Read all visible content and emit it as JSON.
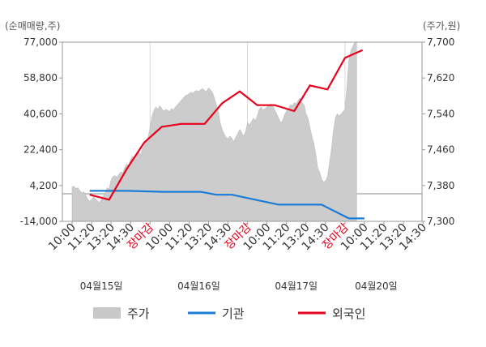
{
  "chart_data": {
    "type": "line",
    "left_axis_unit": "(순매매량,주)",
    "right_axis_unit": "(주가,원)",
    "left_ticks": [
      "77,000",
      "58,800",
      "40,600",
      "22,400",
      "4,200",
      "-14,000"
    ],
    "left_ylim": [
      -14000,
      77000
    ],
    "right_ticks": [
      "7,700",
      "7,620",
      "7,540",
      "7,460",
      "7,380",
      "7,300"
    ],
    "right_ylim": [
      7300,
      7700
    ],
    "x_ticks": [
      {
        "label": "10:00",
        "red": false
      },
      {
        "label": "11:20",
        "red": false
      },
      {
        "label": "13:20",
        "red": false
      },
      {
        "label": "14:30",
        "red": false
      },
      {
        "label": "장마감",
        "red": true
      },
      {
        "label": "10:00",
        "red": false
      },
      {
        "label": "11:20",
        "red": false
      },
      {
        "label": "13:20",
        "red": false
      },
      {
        "label": "14:30",
        "red": false
      },
      {
        "label": "장마감",
        "red": true
      },
      {
        "label": "10:00",
        "red": false
      },
      {
        "label": "11:20",
        "red": false
      },
      {
        "label": "13:20",
        "red": false
      },
      {
        "label": "14:30",
        "red": false
      },
      {
        "label": "장마감",
        "red": true
      },
      {
        "label": "10:00",
        "red": false
      },
      {
        "label": "11:20",
        "red": false
      },
      {
        "label": "13:20",
        "red": false
      },
      {
        "label": "14:30",
        "red": false
      }
    ],
    "dates": [
      "04월15일",
      "04월16일",
      "04월17일",
      "04월20일"
    ],
    "legend": [
      {
        "name": "주가",
        "color": "#c8c8c8",
        "kind": "area"
      },
      {
        "name": "기관",
        "color": "#1a7cd6",
        "kind": "line"
      },
      {
        "name": "외국인",
        "color": "#e8001c",
        "kind": "line"
      }
    ],
    "price_series": [
      [
        0,
        7377
      ],
      [
        0.1,
        7378
      ],
      [
        0.2,
        7373
      ],
      [
        0.3,
        7375
      ],
      [
        0.4,
        7368
      ],
      [
        0.5,
        7363
      ],
      [
        0.6,
        7366
      ],
      [
        0.7,
        7358
      ],
      [
        0.8,
        7350
      ],
      [
        0.9,
        7345
      ],
      [
        1.0,
        7348
      ],
      [
        1.1,
        7355
      ],
      [
        1.2,
        7350
      ],
      [
        1.3,
        7346
      ],
      [
        1.4,
        7342
      ],
      [
        1.5,
        7348
      ],
      [
        1.6,
        7356
      ],
      [
        1.7,
        7362
      ],
      [
        1.8,
        7375
      ],
      [
        1.9,
        7372
      ],
      [
        2.0,
        7392
      ],
      [
        2.1,
        7400
      ],
      [
        2.2,
        7402
      ],
      [
        2.3,
        7398
      ],
      [
        2.4,
        7405
      ],
      [
        2.5,
        7410
      ],
      [
        2.6,
        7408
      ],
      [
        2.7,
        7420
      ],
      [
        2.8,
        7428
      ],
      [
        2.9,
        7425
      ],
      [
        3.0,
        7438
      ],
      [
        3.1,
        7445
      ],
      [
        3.2,
        7440
      ],
      [
        3.3,
        7450
      ],
      [
        3.4,
        7455
      ],
      [
        3.5,
        7448
      ],
      [
        3.6,
        7460
      ],
      [
        3.7,
        7470
      ],
      [
        3.8,
        7478
      ],
      [
        3.9,
        7488
      ],
      [
        4.0,
        7510
      ],
      [
        4.1,
        7535
      ],
      [
        4.2,
        7548
      ],
      [
        4.3,
        7555
      ],
      [
        4.4,
        7550
      ],
      [
        4.5,
        7558
      ],
      [
        4.6,
        7552
      ],
      [
        4.7,
        7545
      ],
      [
        4.8,
        7550
      ],
      [
        4.9,
        7548
      ],
      [
        5.0,
        7545
      ],
      [
        5.1,
        7552
      ],
      [
        5.2,
        7548
      ],
      [
        5.3,
        7555
      ],
      [
        5.4,
        7560
      ],
      [
        5.5,
        7565
      ],
      [
        5.6,
        7570
      ],
      [
        5.7,
        7575
      ],
      [
        5.8,
        7580
      ],
      [
        5.9,
        7582
      ],
      [
        6.0,
        7585
      ],
      [
        6.1,
        7588
      ],
      [
        6.2,
        7586
      ],
      [
        6.3,
        7590
      ],
      [
        6.4,
        7592
      ],
      [
        6.5,
        7590
      ],
      [
        6.6,
        7594
      ],
      [
        6.7,
        7596
      ],
      [
        6.8,
        7592
      ],
      [
        6.9,
        7590
      ],
      [
        7.0,
        7598
      ],
      [
        7.1,
        7593
      ],
      [
        7.2,
        7588
      ],
      [
        7.3,
        7575
      ],
      [
        7.4,
        7560
      ],
      [
        7.5,
        7545
      ],
      [
        7.6,
        7520
      ],
      [
        7.7,
        7505
      ],
      [
        7.8,
        7495
      ],
      [
        7.9,
        7488
      ],
      [
        8.0,
        7484
      ],
      [
        8.1,
        7490
      ],
      [
        8.2,
        7485
      ],
      [
        8.3,
        7478
      ],
      [
        8.4,
        7488
      ],
      [
        8.5,
        7495
      ],
      [
        8.6,
        7505
      ],
      [
        8.7,
        7498
      ],
      [
        8.8,
        7490
      ],
      [
        8.9,
        7500
      ],
      [
        9.0,
        7520
      ],
      [
        9.1,
        7515
      ],
      [
        9.2,
        7522
      ],
      [
        9.3,
        7530
      ],
      [
        9.4,
        7525
      ],
      [
        9.5,
        7535
      ],
      [
        9.6,
        7550
      ],
      [
        9.7,
        7555
      ],
      [
        9.8,
        7548
      ],
      [
        9.9,
        7552
      ],
      [
        10.0,
        7555
      ],
      [
        10.1,
        7560
      ],
      [
        10.2,
        7562
      ],
      [
        10.3,
        7558
      ],
      [
        10.4,
        7548
      ],
      [
        10.5,
        7540
      ],
      [
        10.6,
        7530
      ],
      [
        10.7,
        7520
      ],
      [
        10.8,
        7525
      ],
      [
        10.9,
        7538
      ],
      [
        11.0,
        7546
      ],
      [
        11.1,
        7552
      ],
      [
        11.2,
        7560
      ],
      [
        11.3,
        7558
      ],
      [
        11.4,
        7565
      ],
      [
        11.5,
        7562
      ],
      [
        11.6,
        7570
      ],
      [
        11.7,
        7575
      ],
      [
        11.8,
        7565
      ],
      [
        11.9,
        7560
      ],
      [
        12.0,
        7540
      ],
      [
        12.1,
        7530
      ],
      [
        12.2,
        7510
      ],
      [
        12.3,
        7490
      ],
      [
        12.4,
        7475
      ],
      [
        12.5,
        7450
      ],
      [
        12.6,
        7420
      ],
      [
        12.7,
        7410
      ],
      [
        12.8,
        7395
      ],
      [
        12.9,
        7388
      ],
      [
        13.0,
        7390
      ],
      [
        13.1,
        7400
      ],
      [
        13.2,
        7430
      ],
      [
        13.3,
        7460
      ],
      [
        13.4,
        7500
      ],
      [
        13.5,
        7530
      ],
      [
        13.6,
        7540
      ],
      [
        13.7,
        7535
      ],
      [
        13.8,
        7540
      ],
      [
        13.9,
        7545
      ],
      [
        14.0,
        7550
      ],
      [
        14.1,
        7600
      ],
      [
        14.2,
        7660
      ],
      [
        14.3,
        7680
      ],
      [
        14.4,
        7690
      ],
      [
        14.5,
        7700
      ],
      [
        14.6,
        7700
      ]
    ],
    "institution_series": [
      [
        0.9,
        1500
      ],
      [
        1.4,
        1500
      ],
      [
        2.8,
        1500
      ],
      [
        4.7,
        1000
      ],
      [
        6.6,
        1000
      ],
      [
        7.4,
        -500
      ],
      [
        8.2,
        -500
      ],
      [
        10.6,
        -5500
      ],
      [
        12.8,
        -5500
      ],
      [
        14.2,
        -12500
      ],
      [
        15.0,
        -12500
      ]
    ],
    "foreign_series": [
      [
        0.9,
        -500
      ],
      [
        1.9,
        -3000
      ],
      [
        2.8,
        12500
      ],
      [
        3.7,
        26000
      ],
      [
        4.6,
        34000
      ],
      [
        5.6,
        35500
      ],
      [
        6.8,
        35500
      ],
      [
        7.7,
        46000
      ],
      [
        8.6,
        52000
      ],
      [
        9.5,
        45000
      ],
      [
        10.4,
        45000
      ],
      [
        11.4,
        42000
      ],
      [
        12.2,
        55000
      ],
      [
        13.1,
        53000
      ],
      [
        14.0,
        69000
      ],
      [
        14.9,
        73000
      ]
    ]
  }
}
